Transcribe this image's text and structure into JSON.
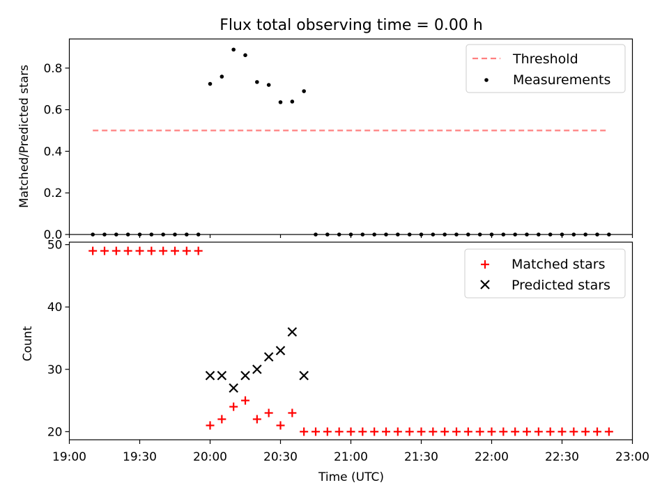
{
  "chart_data": [
    {
      "type": "scatter",
      "title": "Flux total observing time = 0.00 h",
      "xlabel": "",
      "ylabel": "Matched/Predicted stars",
      "xlim": [
        "19:00",
        "23:00"
      ],
      "ylim": [
        0,
        0.94
      ],
      "yticks": [
        "0.0",
        "0.2",
        "0.4",
        "0.6",
        "0.8"
      ],
      "legend_position": "top-right",
      "threshold": {
        "name": "Threshold",
        "value": 0.5,
        "x_start": "19:10",
        "x_end": "22:50",
        "color": "#ff7f7f"
      },
      "series": [
        {
          "name": "Measurements",
          "color": "#000000",
          "x": [
            "19:10",
            "19:15",
            "19:20",
            "19:25",
            "19:30",
            "19:35",
            "19:40",
            "19:45",
            "19:50",
            "19:55",
            "20:00",
            "20:05",
            "20:10",
            "20:15",
            "20:20",
            "20:25",
            "20:30",
            "20:35",
            "20:40",
            "20:45",
            "20:50",
            "20:55",
            "21:00",
            "21:05",
            "21:10",
            "21:15",
            "21:20",
            "21:25",
            "21:30",
            "21:35",
            "21:40",
            "21:45",
            "21:50",
            "21:55",
            "22:00",
            "22:05",
            "22:10",
            "22:15",
            "22:20",
            "22:25",
            "22:30",
            "22:35",
            "22:40",
            "22:45",
            "22:50"
          ],
          "y": [
            0,
            0,
            0,
            0,
            0,
            0,
            0,
            0,
            0,
            0,
            0.724,
            0.759,
            0.889,
            0.862,
            0.733,
            0.719,
            0.636,
            0.639,
            0.689,
            0,
            0,
            0,
            0,
            0,
            0,
            0,
            0,
            0,
            0,
            0,
            0,
            0,
            0,
            0,
            0,
            0,
            0,
            0,
            0,
            0,
            0,
            0,
            0,
            0,
            0
          ]
        }
      ]
    },
    {
      "type": "scatter",
      "title": "",
      "xlabel": "Time (UTC)",
      "ylabel": "Count",
      "xlim": [
        "19:00",
        "23:00"
      ],
      "ylim": [
        18.7,
        50.4
      ],
      "yticks": [
        "20",
        "30",
        "40",
        "50"
      ],
      "xticks": [
        "19:00",
        "19:30",
        "20:00",
        "20:30",
        "21:00",
        "21:30",
        "22:00",
        "22:30",
        "23:00"
      ],
      "legend_position": "top-right",
      "series": [
        {
          "name": "Matched stars",
          "color": "#ff0000",
          "marker": "plus",
          "x": [
            "19:10",
            "19:15",
            "19:20",
            "19:25",
            "19:30",
            "19:35",
            "19:40",
            "19:45",
            "19:50",
            "19:55",
            "20:00",
            "20:05",
            "20:10",
            "20:15",
            "20:20",
            "20:25",
            "20:30",
            "20:35",
            "20:40",
            "20:45",
            "20:50",
            "20:55",
            "21:00",
            "21:05",
            "21:10",
            "21:15",
            "21:20",
            "21:25",
            "21:30",
            "21:35",
            "21:40",
            "21:45",
            "21:50",
            "21:55",
            "22:00",
            "22:05",
            "22:10",
            "22:15",
            "22:20",
            "22:25",
            "22:30",
            "22:35",
            "22:40",
            "22:45",
            "22:50"
          ],
          "y": [
            49,
            49,
            49,
            49,
            49,
            49,
            49,
            49,
            49,
            49,
            21,
            22,
            24,
            25,
            22,
            23,
            21,
            23,
            20,
            20,
            20,
            20,
            20,
            20,
            20,
            20,
            20,
            20,
            20,
            20,
            20,
            20,
            20,
            20,
            20,
            20,
            20,
            20,
            20,
            20,
            20,
            20,
            20,
            20,
            20
          ]
        },
        {
          "name": "Predicted stars",
          "color": "#000000",
          "marker": "x",
          "x": [
            "20:00",
            "20:05",
            "20:10",
            "20:15",
            "20:20",
            "20:25",
            "20:30",
            "20:35",
            "20:40"
          ],
          "y": [
            29,
            29,
            27,
            29,
            30,
            32,
            33,
            36,
            29
          ]
        }
      ]
    }
  ]
}
